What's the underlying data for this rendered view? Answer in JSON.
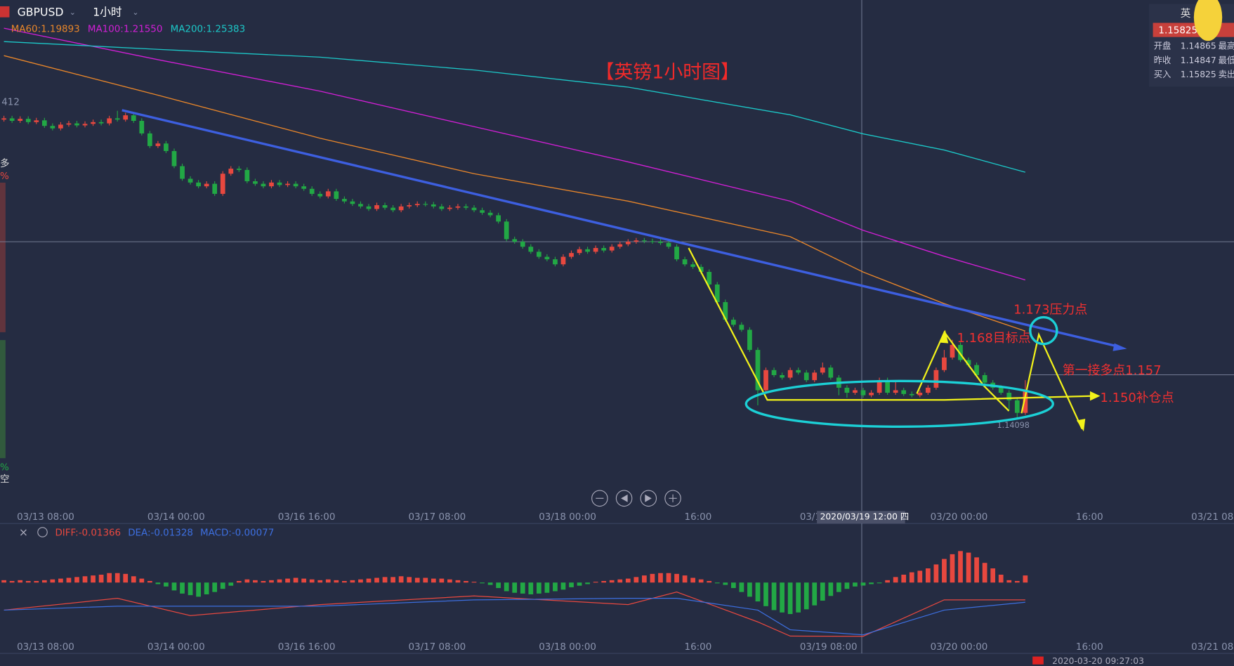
{
  "ui": {
    "symbol": "GBPUSD",
    "period": "1小时",
    "crosshair_label": "2020/03/19 12:00 四",
    "axis_edge_label": "412",
    "side_marks": [
      "多",
      "%",
      "%",
      "空"
    ],
    "quote": {
      "title": "英",
      "price": "1.15825",
      "rows": [
        [
          "开盘",
          "1.14865",
          "最高"
        ],
        [
          "昨收",
          "1.14847",
          "最低"
        ],
        [
          "买入",
          "1.15825",
          "卖出"
        ]
      ]
    },
    "status_time": "2020-03-20 09:27:03"
  },
  "chart_data": {
    "type": "candlestick",
    "title": "【英镑1小时图】",
    "annotations": [
      "1.173压力点",
      "1.168目标点",
      "第一接多点1.157",
      "1.150补仓点"
    ],
    "x_tick_labels": [
      "03/13 08:00",
      "03/14 00:00",
      "03/16 16:00",
      "03/17 08:00",
      "03/18 00:00",
      "16:00",
      "03/19 08:00",
      "03/20 00:00",
      "16:00",
      "03/21 08:00"
    ],
    "ylim": [
      1.105,
      1.307
    ],
    "up_color": "#e8483f",
    "down_color": "#22a845",
    "candles": {
      "ohlc": [
        [
          1.2595,
          1.261,
          1.2587,
          1.26
        ],
        [
          1.26,
          1.261,
          1.2582,
          1.259
        ],
        [
          1.259,
          1.2608,
          1.2582,
          1.2598
        ],
        [
          1.2598,
          1.2608,
          1.2577,
          1.2585
        ],
        [
          1.2585,
          1.2602,
          1.2577,
          1.2592
        ],
        [
          1.2592,
          1.2602,
          1.2562,
          1.257
        ],
        [
          1.257,
          1.258,
          1.2552,
          1.256
        ],
        [
          1.256,
          1.2585,
          1.2552,
          1.2575
        ],
        [
          1.2575,
          1.259,
          1.2567,
          1.258
        ],
        [
          1.258,
          1.259,
          1.2564,
          1.2572
        ],
        [
          1.2572,
          1.2588,
          1.2564,
          1.2578
        ],
        [
          1.2578,
          1.2595,
          1.257,
          1.2585
        ],
        [
          1.2585,
          1.2595,
          1.2572,
          1.258
        ],
        [
          1.258,
          1.261,
          1.2572,
          1.26
        ],
        [
          1.26,
          1.263,
          1.2587,
          1.2595
        ],
        [
          1.2595,
          1.2622,
          1.2587,
          1.2612
        ],
        [
          1.2612,
          1.2622,
          1.2582,
          1.259
        ],
        [
          1.259,
          1.26,
          1.2532,
          1.254
        ],
        [
          1.254,
          1.255,
          1.2482,
          1.249
        ],
        [
          1.249,
          1.251,
          1.2482,
          1.25
        ],
        [
          1.25,
          1.251,
          1.2462,
          1.247
        ],
        [
          1.247,
          1.248,
          1.2402,
          1.241
        ],
        [
          1.241,
          1.242,
          1.2352,
          1.236
        ],
        [
          1.236,
          1.237,
          1.2337,
          1.2345
        ],
        [
          1.2345,
          1.2355,
          1.2322,
          1.233
        ],
        [
          1.233,
          1.235,
          1.2322,
          1.234
        ],
        [
          1.234,
          1.235,
          1.2292,
          1.23
        ],
        [
          1.23,
          1.239,
          1.2292,
          1.238
        ],
        [
          1.238,
          1.241,
          1.2372,
          1.24
        ],
        [
          1.24,
          1.241,
          1.2387,
          1.2395
        ],
        [
          1.2395,
          1.2405,
          1.2342,
          1.235
        ],
        [
          1.235,
          1.236,
          1.2332,
          1.234
        ],
        [
          1.234,
          1.235,
          1.2322,
          1.233
        ],
        [
          1.233,
          1.2355,
          1.2322,
          1.2345
        ],
        [
          1.2345,
          1.2355,
          1.2327,
          1.2335
        ],
        [
          1.2335,
          1.235,
          1.2327,
          1.234
        ],
        [
          1.234,
          1.235,
          1.2322,
          1.233
        ],
        [
          1.233,
          1.234,
          1.2312,
          1.232
        ],
        [
          1.232,
          1.233,
          1.2292,
          1.23
        ],
        [
          1.23,
          1.231,
          1.2282,
          1.229
        ],
        [
          1.229,
          1.232,
          1.2282,
          1.231
        ],
        [
          1.231,
          1.232,
          1.2272,
          1.228
        ],
        [
          1.228,
          1.229,
          1.2262,
          1.227
        ],
        [
          1.227,
          1.228,
          1.2252,
          1.226
        ],
        [
          1.226,
          1.227,
          1.2242,
          1.225
        ],
        [
          1.225,
          1.226,
          1.2232,
          1.224
        ],
        [
          1.224,
          1.2265,
          1.2232,
          1.2255
        ],
        [
          1.2255,
          1.2265,
          1.2237,
          1.2245
        ],
        [
          1.2245,
          1.2255,
          1.2227,
          1.2235
        ],
        [
          1.2235,
          1.226,
          1.2227,
          1.225
        ],
        [
          1.225,
          1.2265,
          1.2242,
          1.2255
        ],
        [
          1.2255,
          1.227,
          1.2247,
          1.226
        ],
        [
          1.226,
          1.227,
          1.225,
          1.2258
        ],
        [
          1.2258,
          1.2268,
          1.2242,
          1.225
        ],
        [
          1.225,
          1.226,
          1.2232,
          1.224
        ],
        [
          1.224,
          1.2255,
          1.2232,
          1.2245
        ],
        [
          1.2245,
          1.226,
          1.2237,
          1.225
        ],
        [
          1.225,
          1.226,
          1.2237,
          1.2245
        ],
        [
          1.2245,
          1.2255,
          1.2227,
          1.2235
        ],
        [
          1.2235,
          1.2245,
          1.2217,
          1.2225
        ],
        [
          1.2225,
          1.2235,
          1.2207,
          1.2215
        ],
        [
          1.2215,
          1.2225,
          1.2182,
          1.219
        ],
        [
          1.219,
          1.22,
          1.2112,
          1.212
        ],
        [
          1.212,
          1.213,
          1.2102,
          1.211
        ],
        [
          1.211,
          1.212,
          1.2082,
          1.209
        ],
        [
          1.209,
          1.21,
          1.2062,
          1.207
        ],
        [
          1.207,
          1.208,
          1.2042,
          1.205
        ],
        [
          1.205,
          1.206,
          1.2032,
          1.204
        ],
        [
          1.204,
          1.205,
          1.2012,
          1.202
        ],
        [
          1.202,
          1.206,
          1.2012,
          1.205
        ],
        [
          1.205,
          1.2075,
          1.2042,
          1.2065
        ],
        [
          1.2065,
          1.209,
          1.2057,
          1.208
        ],
        [
          1.208,
          1.209,
          1.2062,
          1.207
        ],
        [
          1.207,
          1.2095,
          1.2062,
          1.2085
        ],
        [
          1.2085,
          1.2095,
          1.2067,
          1.2075
        ],
        [
          1.2075,
          1.21,
          1.2067,
          1.209
        ],
        [
          1.209,
          1.211,
          1.2082,
          1.21
        ],
        [
          1.21,
          1.212,
          1.2092,
          1.211
        ],
        [
          1.211,
          1.2125,
          1.2102,
          1.2115
        ],
        [
          1.2115,
          1.2125,
          1.2104,
          1.2112
        ],
        [
          1.2112,
          1.2122,
          1.2102,
          1.211
        ],
        [
          1.211,
          1.212,
          1.2097,
          1.2105
        ],
        [
          1.2105,
          1.2115,
          1.2082,
          1.209
        ],
        [
          1.209,
          1.21,
          1.2032,
          1.204
        ],
        [
          1.204,
          1.205,
          1.2012,
          1.202
        ],
        [
          1.202,
          1.203,
          1.2002,
          1.201
        ],
        [
          1.201,
          1.202,
          1.1982,
          1.199
        ],
        [
          1.199,
          1.2,
          1.1932,
          1.194
        ],
        [
          1.194,
          1.195,
          1.1862,
          1.187
        ],
        [
          1.187,
          1.188,
          1.1792,
          1.18
        ],
        [
          1.18,
          1.181,
          1.1772,
          1.178
        ],
        [
          1.178,
          1.179,
          1.1752,
          1.176
        ],
        [
          1.176,
          1.177,
          1.1672,
          1.168
        ],
        [
          1.168,
          1.169,
          1.146,
          1.152
        ],
        [
          1.152,
          1.161,
          1.1512,
          1.16
        ],
        [
          1.16,
          1.161,
          1.1572,
          1.158
        ],
        [
          1.158,
          1.159,
          1.1562,
          1.157
        ],
        [
          1.157,
          1.161,
          1.1562,
          1.16
        ],
        [
          1.16,
          1.161,
          1.1582,
          1.159
        ],
        [
          1.159,
          1.16,
          1.1552,
          1.156
        ],
        [
          1.156,
          1.16,
          1.1552,
          1.159
        ],
        [
          1.159,
          1.163,
          1.1582,
          1.161
        ],
        [
          1.161,
          1.162,
          1.1562,
          1.157
        ],
        [
          1.157,
          1.158,
          1.15,
          1.153
        ],
        [
          1.153,
          1.154,
          1.149,
          1.151
        ],
        [
          1.151,
          1.153,
          1.1502,
          1.152
        ],
        [
          1.152,
          1.153,
          1.149,
          1.15
        ],
        [
          1.15,
          1.152,
          1.1492,
          1.151
        ],
        [
          1.151,
          1.157,
          1.1502,
          1.156
        ],
        [
          1.156,
          1.157,
          1.1502,
          1.151
        ],
        [
          1.151,
          1.156,
          1.1502,
          1.152
        ],
        [
          1.152,
          1.153,
          1.1497,
          1.1505
        ],
        [
          1.1505,
          1.1515,
          1.1492,
          1.15
        ],
        [
          1.15,
          1.152,
          1.1492,
          1.151
        ],
        [
          1.151,
          1.154,
          1.1502,
          1.153
        ],
        [
          1.153,
          1.161,
          1.1522,
          1.16
        ],
        [
          1.16,
          1.168,
          1.1592,
          1.165
        ],
        [
          1.165,
          1.172,
          1.1642,
          1.17
        ],
        [
          1.17,
          1.171,
          1.1632,
          1.164
        ],
        [
          1.164,
          1.165,
          1.1612,
          1.162
        ],
        [
          1.162,
          1.163,
          1.1572,
          1.158
        ],
        [
          1.158,
          1.159,
          1.1542,
          1.155
        ],
        [
          1.155,
          1.156,
          1.1522,
          1.153
        ],
        [
          1.153,
          1.154,
          1.1502,
          1.151
        ],
        [
          1.151,
          1.152,
          1.144,
          1.148
        ],
        [
          1.148,
          1.149,
          1.14098,
          1.143
        ],
        [
          1.143,
          1.156,
          1.1422,
          1.152
        ]
      ]
    },
    "ma": [
      {
        "name": "MA60",
        "label": "MA60:1.19893",
        "color": "#e8862a",
        "x": [
          0,
          19,
          39,
          58,
          77,
          97,
          106,
          116,
          126
        ],
        "values": [
          1.2849,
          1.2692,
          1.2521,
          1.238,
          1.2271,
          1.213,
          1.19893,
          1.1864,
          1.1755
        ]
      },
      {
        "name": "MA100",
        "label": "MA100:1.21550",
        "color": "#d21fd6",
        "x": [
          0,
          19,
          39,
          58,
          77,
          97,
          106,
          116,
          126
        ],
        "values": [
          1.2958,
          1.2833,
          1.2708,
          1.2567,
          1.2427,
          1.2271,
          1.2155,
          1.2052,
          1.1958
        ]
      },
      {
        "name": "MA200",
        "label": "MA200:1.25383",
        "color": "#1cc7c7",
        "x": [
          0,
          19,
          39,
          58,
          77,
          97,
          106,
          116,
          126
        ],
        "values": [
          1.2905,
          1.2874,
          1.2843,
          1.2792,
          1.2724,
          1.2614,
          1.25383,
          1.2474,
          1.2386
        ]
      }
    ],
    "macd": {
      "ylim": [
        -0.018,
        0.01
      ],
      "legend": [
        "DIFF:-0.01366",
        "DEA:-0.01328",
        "MACD:-0.00077"
      ],
      "hist": [
        0.0006,
        0.0004,
        0.0006,
        0.0004,
        0.0004,
        0.0006,
        0.0008,
        0.001,
        0.0012,
        0.0014,
        0.0016,
        0.0018,
        0.002,
        0.0024,
        0.0024,
        0.0022,
        0.0016,
        0.001,
        0.0004,
        -0.0004,
        -0.001,
        -0.002,
        -0.0028,
        -0.0032,
        -0.0036,
        -0.003,
        -0.0024,
        -0.0016,
        -0.0008,
        0.0004,
        0.0008,
        0.0006,
        0.0004,
        0.0006,
        0.0008,
        0.001,
        0.0012,
        0.001,
        0.0008,
        0.0006,
        0.0008,
        0.0006,
        0.0004,
        0.0006,
        0.0008,
        0.001,
        0.0012,
        0.0014,
        0.0014,
        0.0016,
        0.0014,
        0.0012,
        0.0012,
        0.001,
        0.001,
        0.0008,
        0.0006,
        0.0004,
        0.0002,
        -0.0002,
        -0.0006,
        -0.0014,
        -0.0022,
        -0.0026,
        -0.0028,
        -0.003,
        -0.0028,
        -0.0026,
        -0.0022,
        -0.0018,
        -0.0012,
        -0.0008,
        -0.0004,
        0.0002,
        0.0004,
        0.0006,
        0.0008,
        0.001,
        0.0014,
        0.0018,
        0.0022,
        0.0024,
        0.0024,
        0.0022,
        0.0018,
        0.0012,
        0.0008,
        0.0004,
        -0.0002,
        -0.0006,
        -0.0014,
        -0.0024,
        -0.0036,
        -0.0048,
        -0.006,
        -0.007,
        -0.0076,
        -0.008,
        -0.0076,
        -0.0068,
        -0.0058,
        -0.0046,
        -0.0034,
        -0.0024,
        -0.0016,
        -0.001,
        -0.00077,
        -0.0004,
        -0.0002,
        0.0006,
        0.0014,
        0.002,
        0.0026,
        0.003,
        0.0036,
        0.0046,
        0.006,
        0.0072,
        0.008,
        0.0076,
        0.0064,
        0.005,
        0.0036,
        0.002,
        0.0006,
        0.0004,
        0.0018
      ],
      "diff": {
        "name": "DIFF",
        "color": "#e8483f",
        "x": [
          0,
          14,
          23,
          39,
          58,
          77,
          83,
          93,
          97,
          106,
          116,
          126
        ],
        "values": [
          -0.007,
          -0.004,
          -0.0084,
          -0.0056,
          -0.0034,
          -0.0056,
          -0.0024,
          -0.01,
          -0.0136,
          -0.01366,
          -0.0044,
          -0.0044
        ]
      },
      "dea": {
        "name": "DEA",
        "color": "#3d6fe0",
        "x": [
          0,
          14,
          23,
          39,
          58,
          77,
          83,
          93,
          97,
          106,
          116,
          126
        ],
        "values": [
          -0.007,
          -0.006,
          -0.006,
          -0.006,
          -0.0044,
          -0.004,
          -0.004,
          -0.007,
          -0.012,
          -0.01328,
          -0.007,
          -0.005
        ]
      }
    }
  }
}
